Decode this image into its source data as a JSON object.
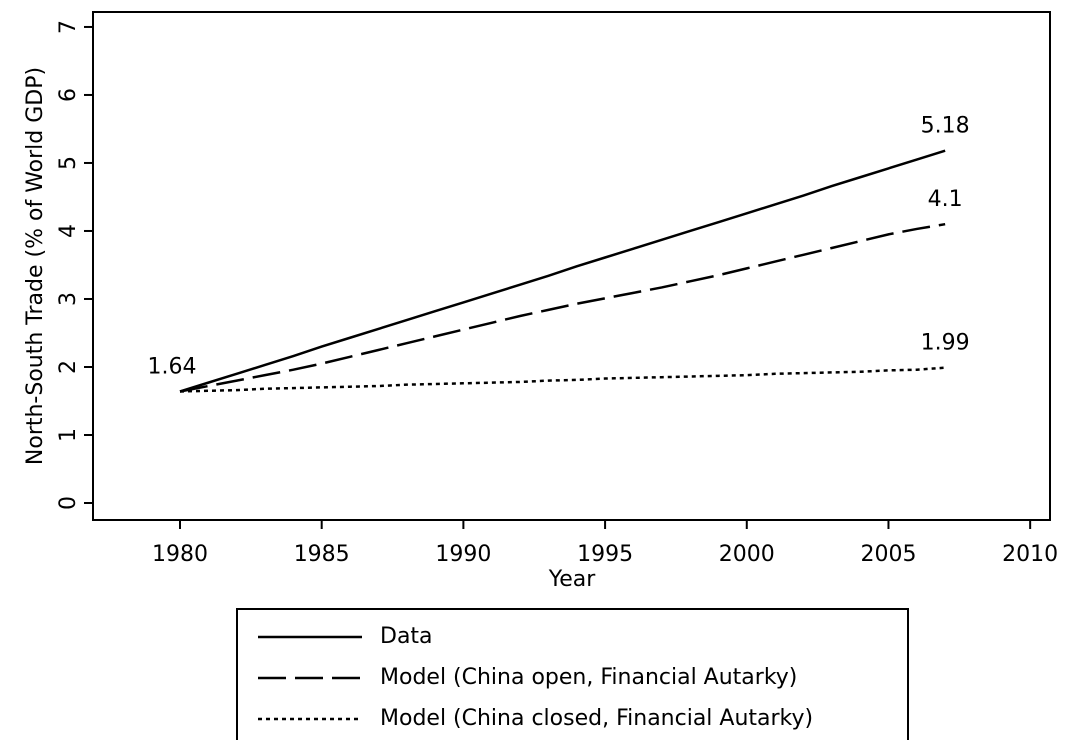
{
  "chart_data": {
    "type": "line",
    "x_label": "Year",
    "y_label": "North-South Trade (% of World GDP)",
    "x": [
      1980,
      1981,
      1982,
      1983,
      1984,
      1985,
      1986,
      1987,
      1988,
      1989,
      1990,
      1991,
      1992,
      1993,
      1994,
      1995,
      1996,
      1997,
      1998,
      1999,
      2000,
      2001,
      2002,
      2003,
      2004,
      2005,
      2006,
      2007
    ],
    "series": [
      {
        "name": "Data",
        "color": "#000000",
        "dash": "solid",
        "values": [
          1.64,
          1.77,
          1.9,
          2.03,
          2.16,
          2.3,
          2.43,
          2.56,
          2.69,
          2.82,
          2.95,
          3.08,
          3.21,
          3.34,
          3.48,
          3.61,
          3.74,
          3.87,
          4.0,
          4.13,
          4.26,
          4.39,
          4.52,
          4.66,
          4.79,
          4.92,
          5.05,
          5.18
        ],
        "value_labels": [
          "1.64",
          null,
          null,
          null,
          null,
          null,
          null,
          null,
          null,
          null,
          null,
          null,
          null,
          null,
          null,
          null,
          null,
          null,
          null,
          null,
          null,
          null,
          null,
          null,
          null,
          null,
          null,
          "5.18"
        ]
      },
      {
        "name": "Model (China open, Financial Autarky)",
        "color": "#000000",
        "dash": "dashed",
        "values": [
          1.64,
          1.72,
          1.8,
          1.88,
          1.96,
          2.05,
          2.15,
          2.25,
          2.35,
          2.45,
          2.55,
          2.65,
          2.75,
          2.84,
          2.93,
          3.01,
          3.09,
          3.17,
          3.26,
          3.35,
          3.45,
          3.55,
          3.65,
          3.75,
          3.85,
          3.95,
          4.03,
          4.1
        ],
        "value_labels": [
          null,
          null,
          null,
          null,
          null,
          null,
          null,
          null,
          null,
          null,
          null,
          null,
          null,
          null,
          null,
          null,
          null,
          null,
          null,
          null,
          null,
          null,
          null,
          null,
          null,
          null,
          null,
          "4.1"
        ]
      },
      {
        "name": "Model (China closed, Financial Autarky)",
        "color": "#000000",
        "dash": "dotted",
        "values": [
          1.64,
          1.65,
          1.66,
          1.68,
          1.69,
          1.7,
          1.71,
          1.72,
          1.74,
          1.75,
          1.76,
          1.77,
          1.78,
          1.8,
          1.81,
          1.83,
          1.84,
          1.85,
          1.86,
          1.87,
          1.88,
          1.9,
          1.91,
          1.92,
          1.93,
          1.95,
          1.96,
          1.99
        ],
        "value_labels": [
          null,
          null,
          null,
          null,
          null,
          null,
          null,
          null,
          null,
          null,
          null,
          null,
          null,
          null,
          null,
          null,
          null,
          null,
          null,
          null,
          null,
          null,
          null,
          null,
          null,
          null,
          null,
          "1.99"
        ]
      }
    ],
    "xlim": [
      1976.93,
      2010.7
    ],
    "xticks": [
      1980,
      1985,
      1990,
      1995,
      2000,
      2005,
      2010
    ],
    "ylim": [
      -0.25,
      7.22
    ],
    "yticks": [
      0,
      1,
      2,
      3,
      4,
      5,
      6,
      7
    ],
    "grid": false,
    "legend": "bottom"
  }
}
